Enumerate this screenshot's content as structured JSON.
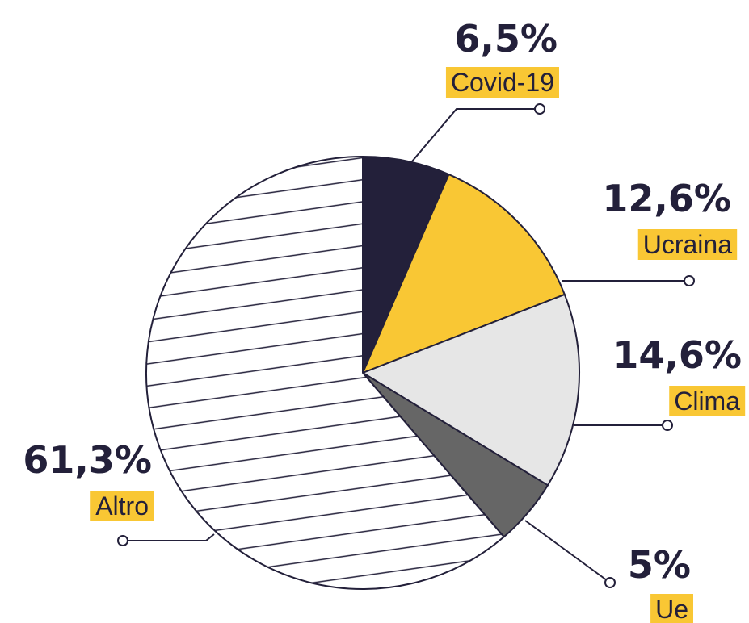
{
  "chart_data": {
    "type": "pie",
    "categories": [
      "Covid-19",
      "Ucraina",
      "Clima",
      "Ue",
      "Altro"
    ],
    "values": [
      6.5,
      12.6,
      14.6,
      5,
      61.3
    ],
    "value_labels": [
      "6,5%",
      "12,6%",
      "14,6%",
      "5%",
      "61,3%"
    ],
    "colors": [
      "#23203a",
      "#f9c734",
      "#e6e6e6",
      "#666666",
      "#ffffff"
    ],
    "hatched": [
      false,
      false,
      false,
      false,
      true
    ]
  }
}
